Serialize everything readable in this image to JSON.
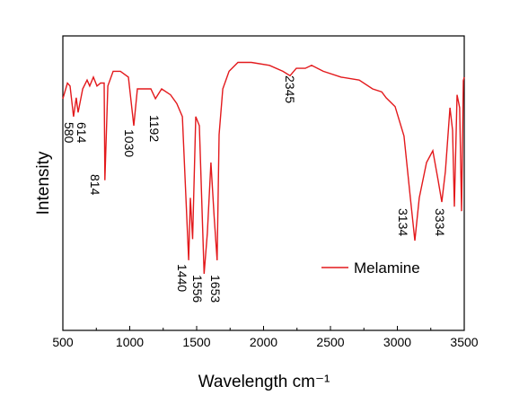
{
  "chart_data": {
    "type": "line",
    "x_label": "Wavelength cm⁻¹",
    "y_label": "Intensity",
    "xlim": [
      500,
      3500
    ],
    "xticks": [
      500,
      1000,
      1500,
      2000,
      2500,
      3000,
      3500
    ],
    "ylim": [
      0,
      100
    ],
    "legend": "right",
    "annotations": [
      "580",
      "614",
      "814",
      "1030",
      "1192",
      "1440",
      "1556",
      "1653",
      "2345",
      "3134",
      "3334"
    ],
    "series": [
      {
        "name": "Melamine",
        "color": "#e3191c",
        "x": [
          500,
          534,
          554,
          580,
          600,
          614,
          648,
          681,
          701,
          728,
          755,
          782,
          809,
          814,
          836,
          876,
          930,
          990,
          1030,
          1057,
          1104,
          1158,
          1192,
          1238,
          1305,
          1352,
          1393,
          1440,
          1453,
          1470,
          1493,
          1520,
          1556,
          1580,
          1607,
          1630,
          1653,
          1668,
          1695,
          1742,
          1809,
          1909,
          2044,
          2144,
          2198,
          2245,
          2312,
          2359,
          2446,
          2580,
          2715,
          2815,
          2883,
          2916,
          2983,
          3050,
          3097,
          3131,
          3164,
          3218,
          3265,
          3305,
          3332,
          3359,
          3393,
          3413,
          3426,
          3446,
          3466,
          3480,
          3493,
          3500
        ],
        "values": [
          78.7,
          84,
          83,
          72.6,
          79,
          74,
          82,
          85,
          83,
          86,
          83,
          84,
          84,
          51,
          83,
          88,
          88,
          86,
          69.5,
          82,
          82,
          82,
          78.7,
          82,
          80,
          77,
          72.6,
          23.8,
          45,
          31,
          72.6,
          69.5,
          19.2,
          33,
          57,
          39,
          23.8,
          66.5,
          82,
          88,
          91,
          91,
          90,
          88,
          86.5,
          89,
          89,
          90,
          88,
          86,
          85,
          82,
          81,
          79,
          76,
          66,
          45,
          30.5,
          45,
          57,
          61,
          51,
          43.6,
          54,
          75.6,
          68,
          42,
          80,
          75.6,
          40.5,
          84.8,
          86
        ]
      }
    ]
  }
}
